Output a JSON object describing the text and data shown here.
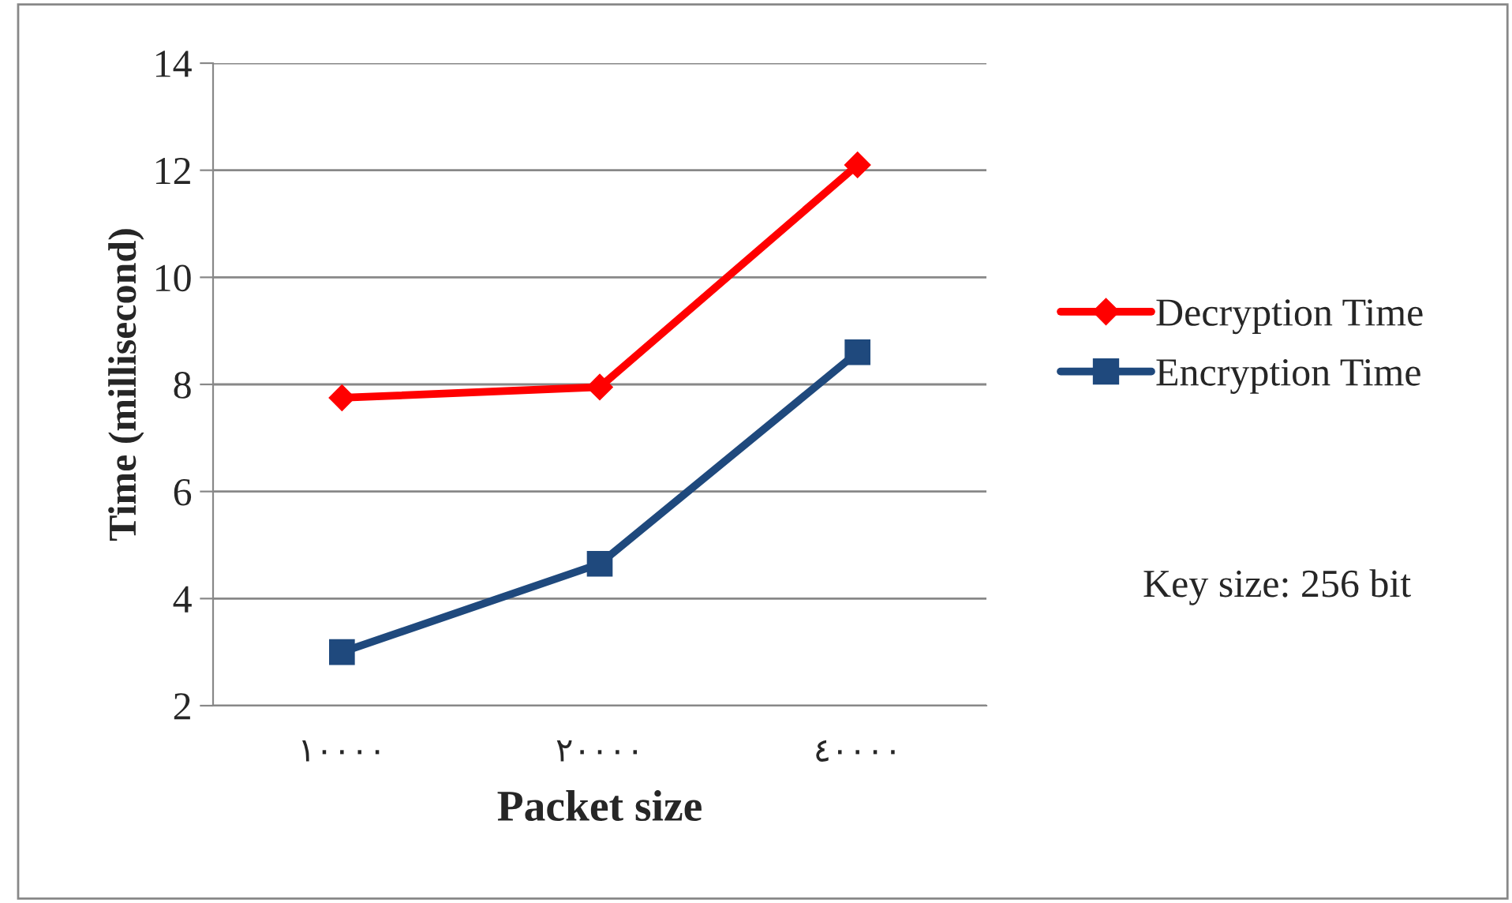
{
  "chart_data": {
    "type": "line",
    "xlabel": "Packet size",
    "ylabel": "Time (millisecond)",
    "categories": [
      "١٠٠٠٠",
      "٢٠٠٠٠",
      "٤٠٠٠٠"
    ],
    "series": [
      {
        "name": "Decryption Time",
        "color": "#ff0000",
        "marker": "diamond",
        "values": [
          7.75,
          7.95,
          12.1
        ]
      },
      {
        "name": "Encryption Time",
        "color": "#1f497d",
        "marker": "square",
        "values": [
          3.0,
          4.65,
          8.6
        ]
      }
    ],
    "ylim": [
      2,
      14
    ],
    "yticks": [
      2,
      4,
      6,
      8,
      10,
      12,
      14
    ],
    "grid": "y",
    "legend": "right",
    "line_style": "solid",
    "annotations": [
      "Key size: 256 bit"
    ]
  }
}
